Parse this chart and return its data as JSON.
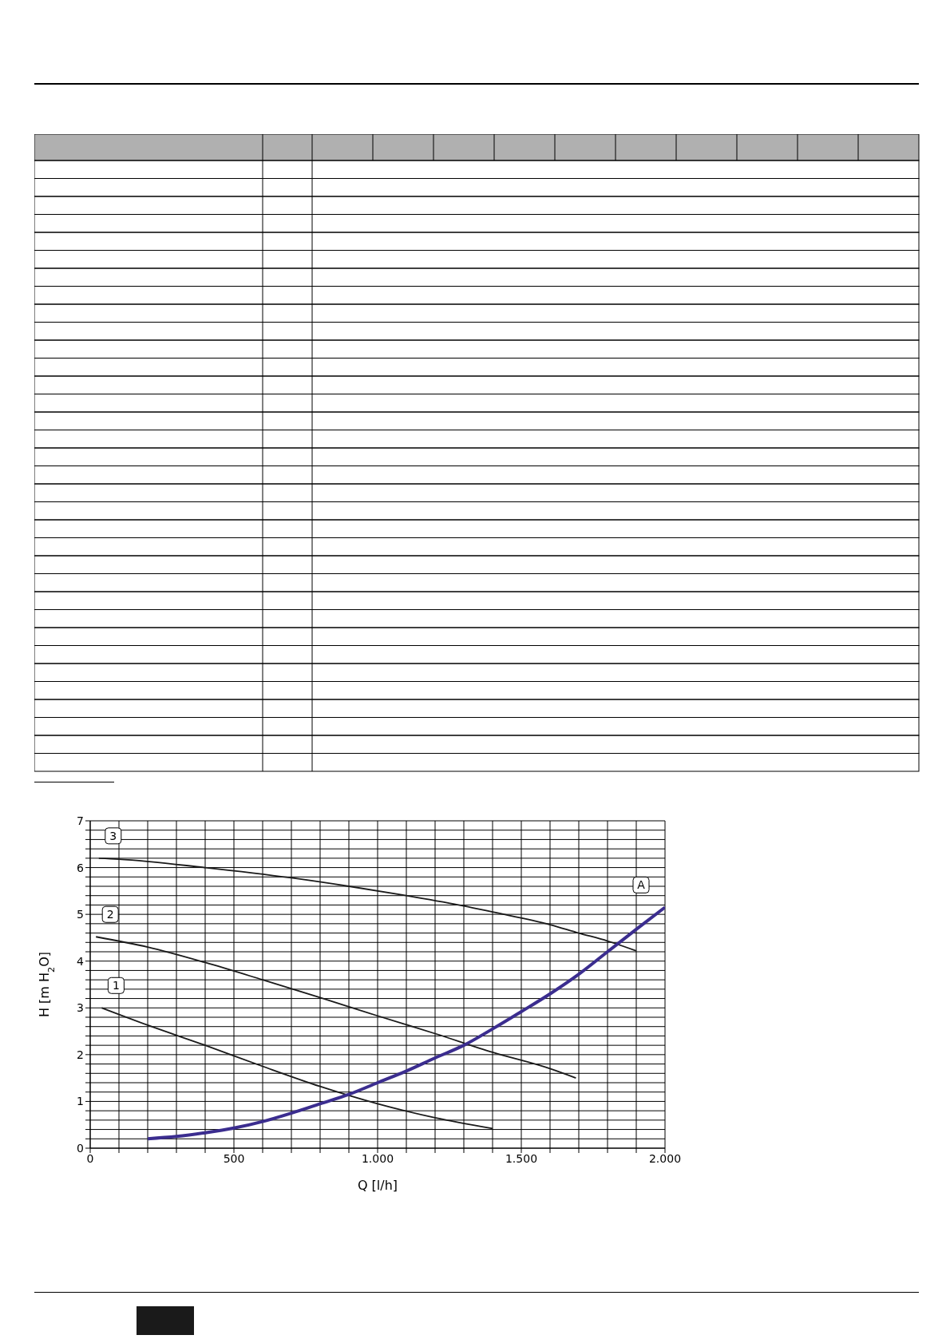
{
  "chart_data": {
    "type": "line",
    "xlabel": "Q [l/h]",
    "ylabel": "H [m H$_{2}$O]",
    "xlim": [
      0,
      2000
    ],
    "ylim": [
      0,
      7
    ],
    "xticks": [
      0,
      {
        "value": 100,
        "label": null
      },
      {
        "value": 200,
        "label": null
      },
      {
        "value": 300,
        "label": null
      },
      {
        "value": 400,
        "label": null
      },
      500,
      {
        "value": 600,
        "label": null
      },
      {
        "value": 700,
        "label": null
      },
      {
        "value": 800,
        "label": null
      },
      {
        "value": 900,
        "label": null
      },
      {
        "value": 1000,
        "label": "1.000"
      },
      {
        "value": 1100,
        "label": null
      },
      {
        "value": 1200,
        "label": null
      },
      {
        "value": 1300,
        "label": null
      },
      {
        "value": 1400,
        "label": null
      },
      {
        "value": 1500,
        "label": "1.500"
      },
      {
        "value": 1600,
        "label": null
      },
      {
        "value": 1700,
        "label": null
      },
      {
        "value": 1800,
        "label": null
      },
      {
        "value": 1900,
        "label": null
      },
      {
        "value": 2000,
        "label": "2.000"
      }
    ],
    "yticks": [
      0,
      {
        "value": 0.2,
        "label": null
      },
      {
        "value": 0.4,
        "label": null
      },
      {
        "value": 0.6,
        "label": null
      },
      {
        "value": 0.8,
        "label": null
      },
      1,
      {
        "value": 1.2,
        "label": null
      },
      {
        "value": 1.4,
        "label": null
      },
      {
        "value": 1.6,
        "label": null
      },
      {
        "value": 1.8,
        "label": null
      },
      2,
      {
        "value": 2.2,
        "label": null
      },
      {
        "value": 2.4,
        "label": null
      },
      {
        "value": 2.6,
        "label": null
      },
      {
        "value": 2.8,
        "label": null
      },
      3,
      {
        "value": 3.2,
        "label": null
      },
      {
        "value": 3.4,
        "label": null
      },
      {
        "value": 3.6,
        "label": null
      },
      {
        "value": 3.8,
        "label": null
      },
      4,
      {
        "value": 4.2,
        "label": null
      },
      {
        "value": 4.4,
        "label": null
      },
      {
        "value": 4.6,
        "label": null
      },
      {
        "value": 4.8,
        "label": null
      },
      5,
      {
        "value": 5.2,
        "label": null
      },
      {
        "value": 5.4,
        "label": null
      },
      {
        "value": 5.6,
        "label": null
      },
      {
        "value": 5.8,
        "label": null
      },
      6,
      {
        "value": 6.2,
        "label": null
      },
      {
        "value": 6.4,
        "label": null
      },
      {
        "value": 6.6,
        "label": null
      },
      {
        "value": 6.8,
        "label": null
      },
      7
    ],
    "grid": true,
    "legend": false,
    "marker": "none",
    "line_style": "solid",
    "series": [
      {
        "name": "3",
        "color": "#1a1a1a",
        "x": [
          30,
          100,
          400,
          700,
          900,
          1100,
          1300,
          1400,
          1600,
          1700,
          1800,
          1900
        ],
        "values": [
          6.2,
          6.18,
          6.0,
          5.78,
          5.6,
          5.4,
          5.18,
          5.05,
          4.78,
          4.6,
          4.43,
          4.22
        ]
      },
      {
        "name": "2",
        "color": "#1a1a1a",
        "x": [
          20,
          200,
          400,
          600,
          800,
          1000,
          1200,
          1400,
          1600,
          1690
        ],
        "values": [
          4.52,
          4.3,
          3.97,
          3.6,
          3.22,
          2.83,
          2.45,
          2.05,
          1.7,
          1.5
        ]
      },
      {
        "name": "1",
        "color": "#1a1a1a",
        "x": [
          40,
          200,
          400,
          600,
          800,
          1000,
          1200,
          1400
        ],
        "values": [
          3.0,
          2.63,
          2.2,
          1.75,
          1.32,
          0.95,
          0.65,
          0.42
        ]
      },
      {
        "name": "A",
        "color": "#3b2d8f",
        "x": [
          200,
          300,
          400,
          500,
          600,
          700,
          800,
          900,
          1000,
          1100,
          1200,
          1300,
          1400,
          1500,
          1600,
          1700,
          1800,
          1900,
          2000
        ],
        "values": [
          0.2,
          0.25,
          0.33,
          0.43,
          0.57,
          0.75,
          0.95,
          1.15,
          1.4,
          1.65,
          1.93,
          2.2,
          2.55,
          2.92,
          3.3,
          3.72,
          4.2,
          4.68,
          5.15
        ]
      }
    ]
  }
}
